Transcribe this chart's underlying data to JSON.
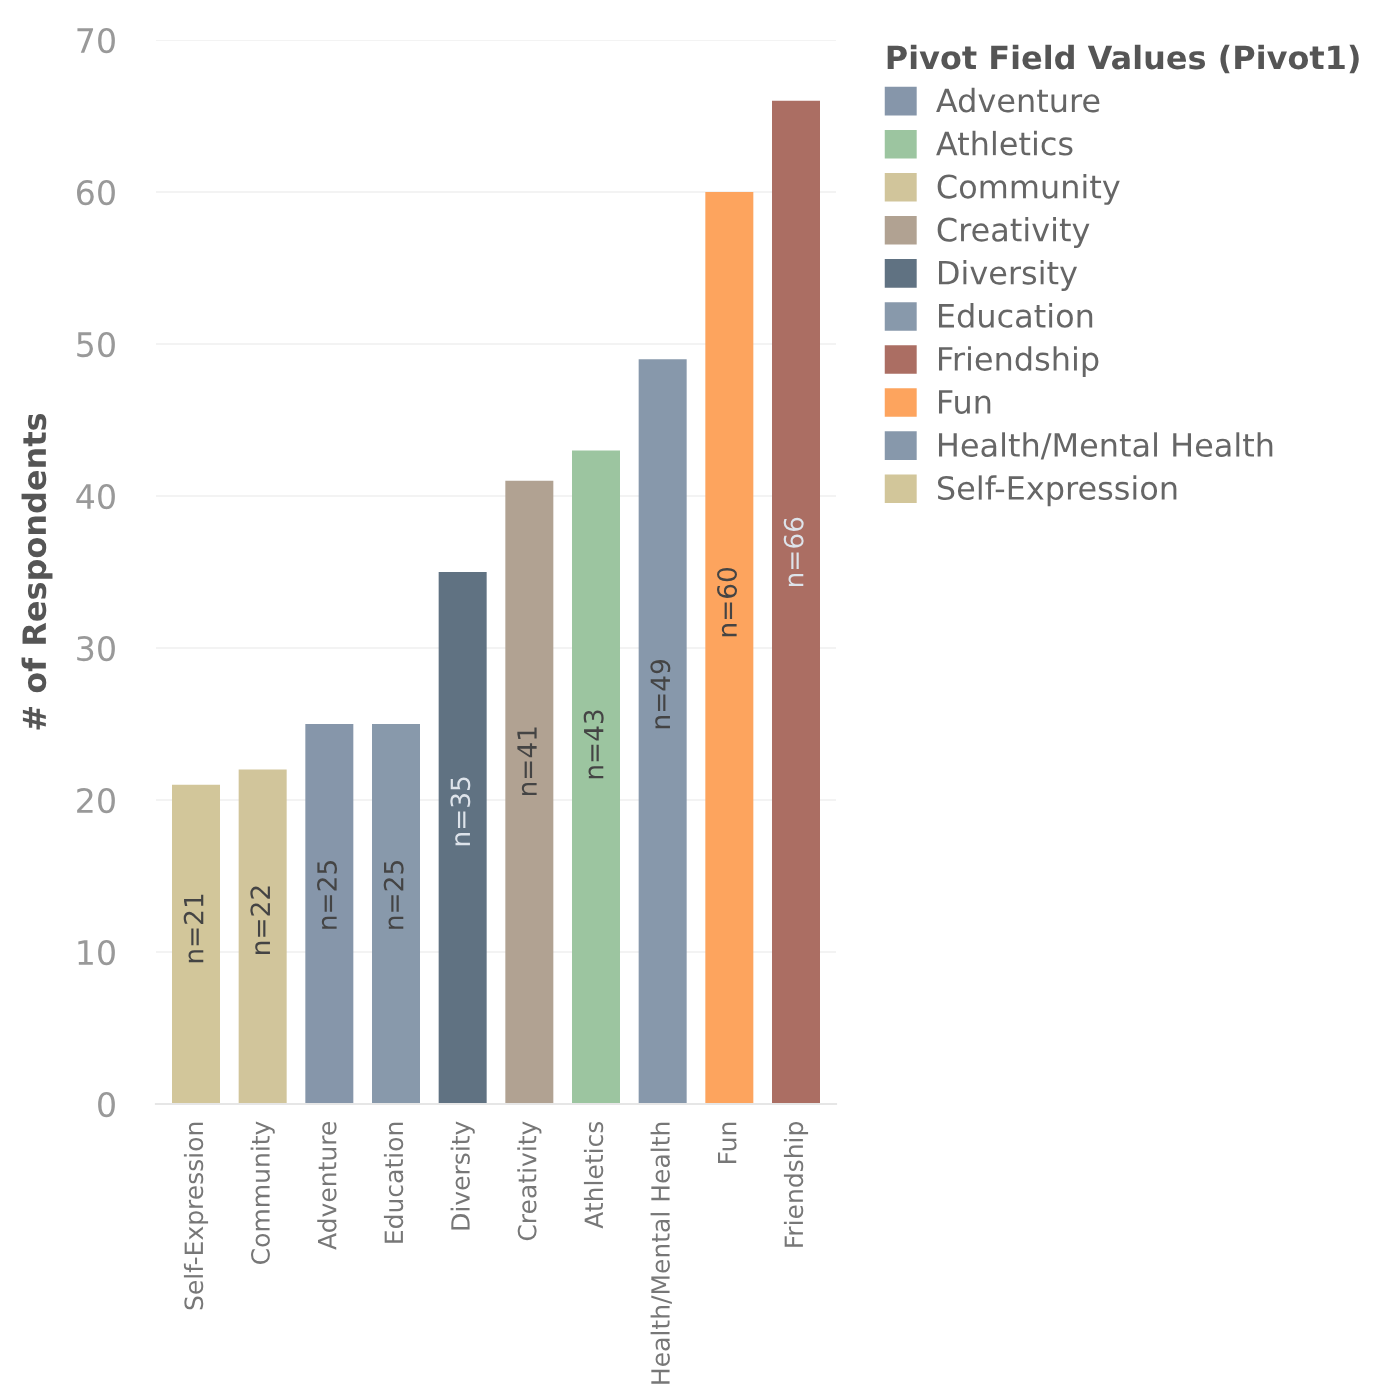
{
  "chart_data": {
    "type": "bar",
    "ylabel": "# of Respondents",
    "legend_title": "Pivot Field Values (Pivot1)",
    "legend": "top right",
    "grid": "y",
    "categories": [
      "Self-Expression",
      "Community",
      "Adventure",
      "Education",
      "Diversity",
      "Creativity",
      "Athletics",
      "Health/Mental Health",
      "Fun",
      "Friendship"
    ],
    "series": [
      {
        "name": "Adventure",
        "color": "#8696aa",
        "values": [
          null,
          null,
          25,
          null,
          null,
          null,
          null,
          null,
          null,
          null
        ],
        "value_labels": [
          null,
          null,
          "n=25",
          null,
          null,
          null,
          null,
          null,
          null,
          null
        ]
      },
      {
        "name": "Athletics",
        "color": "#9cc5a0",
        "values": [
          null,
          null,
          null,
          null,
          null,
          null,
          43,
          null,
          null,
          null
        ],
        "value_labels": [
          null,
          null,
          null,
          null,
          null,
          null,
          "n=43",
          null,
          null,
          null
        ]
      },
      {
        "name": "Community",
        "color": "#d1c59b",
        "values": [
          null,
          22,
          null,
          null,
          null,
          null,
          null,
          null,
          null,
          null
        ],
        "value_labels": [
          null,
          "n=22",
          null,
          null,
          null,
          null,
          null,
          null,
          null,
          null
        ]
      },
      {
        "name": "Creativity",
        "color": "#b1a292",
        "values": [
          null,
          null,
          null,
          null,
          null,
          41,
          null,
          null,
          null,
          null
        ],
        "value_labels": [
          null,
          null,
          null,
          null,
          null,
          "n=41",
          null,
          null,
          null,
          null
        ]
      },
      {
        "name": "Diversity",
        "color": "#607282",
        "values": [
          null,
          null,
          null,
          null,
          35,
          null,
          null,
          null,
          null,
          null
        ],
        "value_labels": [
          null,
          null,
          null,
          null,
          "n=35",
          null,
          null,
          null,
          null,
          null
        ]
      },
      {
        "name": "Education",
        "color": "#8899ab",
        "values": [
          null,
          null,
          null,
          25,
          null,
          null,
          null,
          null,
          null,
          null
        ],
        "value_labels": [
          null,
          null,
          null,
          "n=25",
          null,
          null,
          null,
          null,
          null,
          null
        ]
      },
      {
        "name": "Friendship",
        "color": "#ab6e63",
        "values": [
          null,
          null,
          null,
          null,
          null,
          null,
          null,
          null,
          null,
          66
        ],
        "value_labels": [
          null,
          null,
          null,
          null,
          null,
          null,
          null,
          null,
          null,
          "n=66"
        ]
      },
      {
        "name": "Fun",
        "color": "#fda45e",
        "values": [
          null,
          null,
          null,
          null,
          null,
          null,
          null,
          null,
          60,
          null
        ],
        "value_labels": [
          null,
          null,
          null,
          null,
          null,
          null,
          null,
          null,
          "n=60",
          null
        ]
      },
      {
        "name": "Health/Mental Health",
        "color": "#8798ab",
        "values": [
          null,
          null,
          null,
          null,
          null,
          null,
          null,
          49,
          null,
          null
        ],
        "value_labels": [
          null,
          null,
          null,
          null,
          null,
          null,
          null,
          "n=49",
          null,
          null
        ]
      },
      {
        "name": "Self-Expression",
        "color": "#d2c69a",
        "values": [
          21,
          null,
          null,
          null,
          null,
          null,
          null,
          null,
          null,
          null
        ],
        "value_labels": [
          "n=21",
          null,
          null,
          null,
          null,
          null,
          null,
          null,
          null,
          null
        ]
      }
    ],
    "ylim": [
      0,
      70
    ],
    "yticks": [
      0,
      10,
      20,
      30,
      40,
      50,
      60,
      70
    ]
  }
}
